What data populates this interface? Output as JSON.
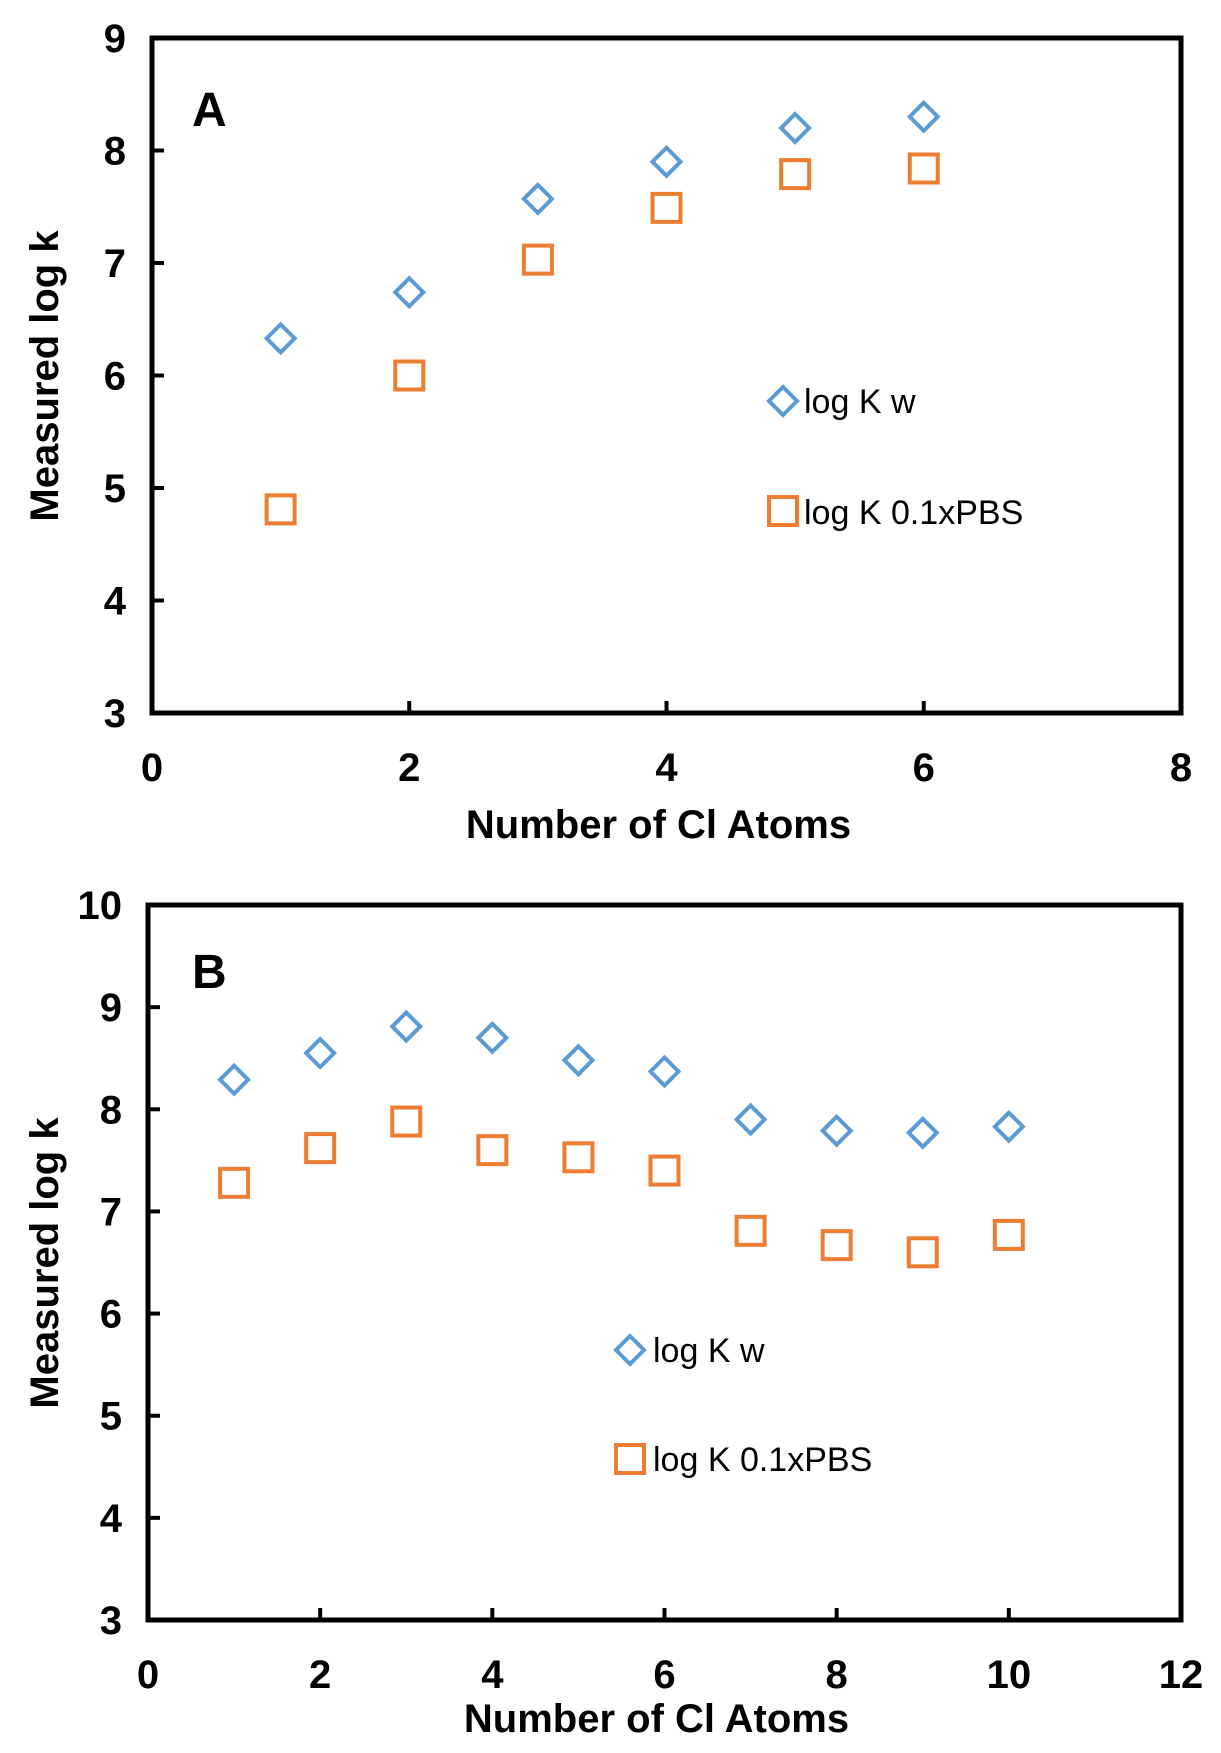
{
  "chart_data": [
    {
      "type": "scatter",
      "panel_label": "A",
      "xlabel": "Number of Cl Atoms",
      "ylabel": "Measured log k",
      "xlim": [
        0,
        8
      ],
      "ylim": [
        3,
        9
      ],
      "xticks": [
        0,
        2,
        4,
        6,
        8
      ],
      "yticks": [
        3,
        4,
        5,
        6,
        7,
        8,
        9
      ],
      "grid": false,
      "series": [
        {
          "name": "log K w",
          "marker": "diamond",
          "color": "#5B9BD5",
          "x": [
            1,
            2,
            3,
            4,
            5,
            6
          ],
          "y": [
            6.33,
            6.74,
            7.57,
            7.9,
            8.2,
            8.3
          ]
        },
        {
          "name": "log K 0.1xPBS",
          "marker": "square",
          "color": "#ED7D31",
          "x": [
            1,
            2,
            3,
            4,
            5,
            6
          ],
          "y": [
            4.81,
            6.0,
            7.03,
            7.49,
            7.79,
            7.84
          ]
        }
      ]
    },
    {
      "type": "scatter",
      "panel_label": "B",
      "xlabel": "Number of Cl Atoms",
      "ylabel": "Measured log k",
      "xlim": [
        0,
        12
      ],
      "ylim": [
        3,
        10
      ],
      "xticks": [
        0,
        2,
        4,
        6,
        8,
        10,
        12
      ],
      "yticks": [
        3,
        4,
        5,
        6,
        7,
        8,
        9,
        10
      ],
      "grid": false,
      "series": [
        {
          "name": "log K w",
          "marker": "diamond",
          "color": "#5B9BD5",
          "x": [
            1,
            2,
            3,
            4,
            5,
            6,
            7,
            8,
            9,
            10
          ],
          "y": [
            8.29,
            8.55,
            8.81,
            8.7,
            8.48,
            8.37,
            7.9,
            7.79,
            7.77,
            7.83
          ]
        },
        {
          "name": "log K 0.1xPBS",
          "marker": "square",
          "color": "#ED7D31",
          "x": [
            1,
            2,
            3,
            4,
            5,
            6,
            7,
            8,
            9,
            10
          ],
          "y": [
            7.28,
            7.62,
            7.88,
            7.6,
            7.53,
            7.4,
            6.81,
            6.67,
            6.6,
            6.77
          ]
        }
      ]
    }
  ]
}
